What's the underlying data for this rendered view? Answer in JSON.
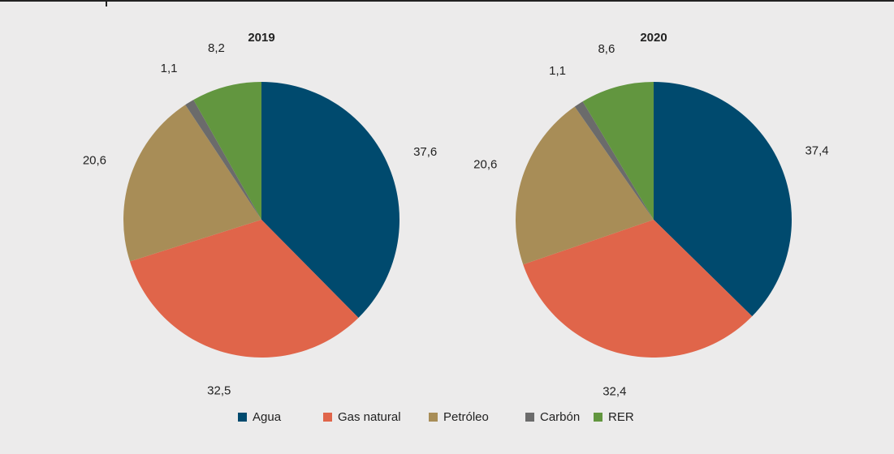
{
  "legend": {
    "labels": [
      "Agua",
      "Gas natural",
      "Petróleo",
      "Carbón",
      "RER"
    ],
    "colors": [
      "#004a6e",
      "#e0654a",
      "#a88d57",
      "#6b6b6b",
      "#62963f"
    ]
  },
  "chart_data": [
    {
      "type": "pie",
      "title": "2019",
      "values": [
        37.6,
        32.5,
        20.6,
        1.1,
        8.2
      ],
      "value_labels": [
        "37,6",
        "32,5",
        "20,6",
        "1,1",
        "8,2"
      ]
    },
    {
      "type": "pie",
      "title": "2020",
      "values": [
        37.4,
        32.4,
        20.6,
        1.1,
        8.6
      ],
      "value_labels": [
        "37,4",
        "32,4",
        "20,6",
        "1,1",
        "8,6"
      ]
    }
  ]
}
